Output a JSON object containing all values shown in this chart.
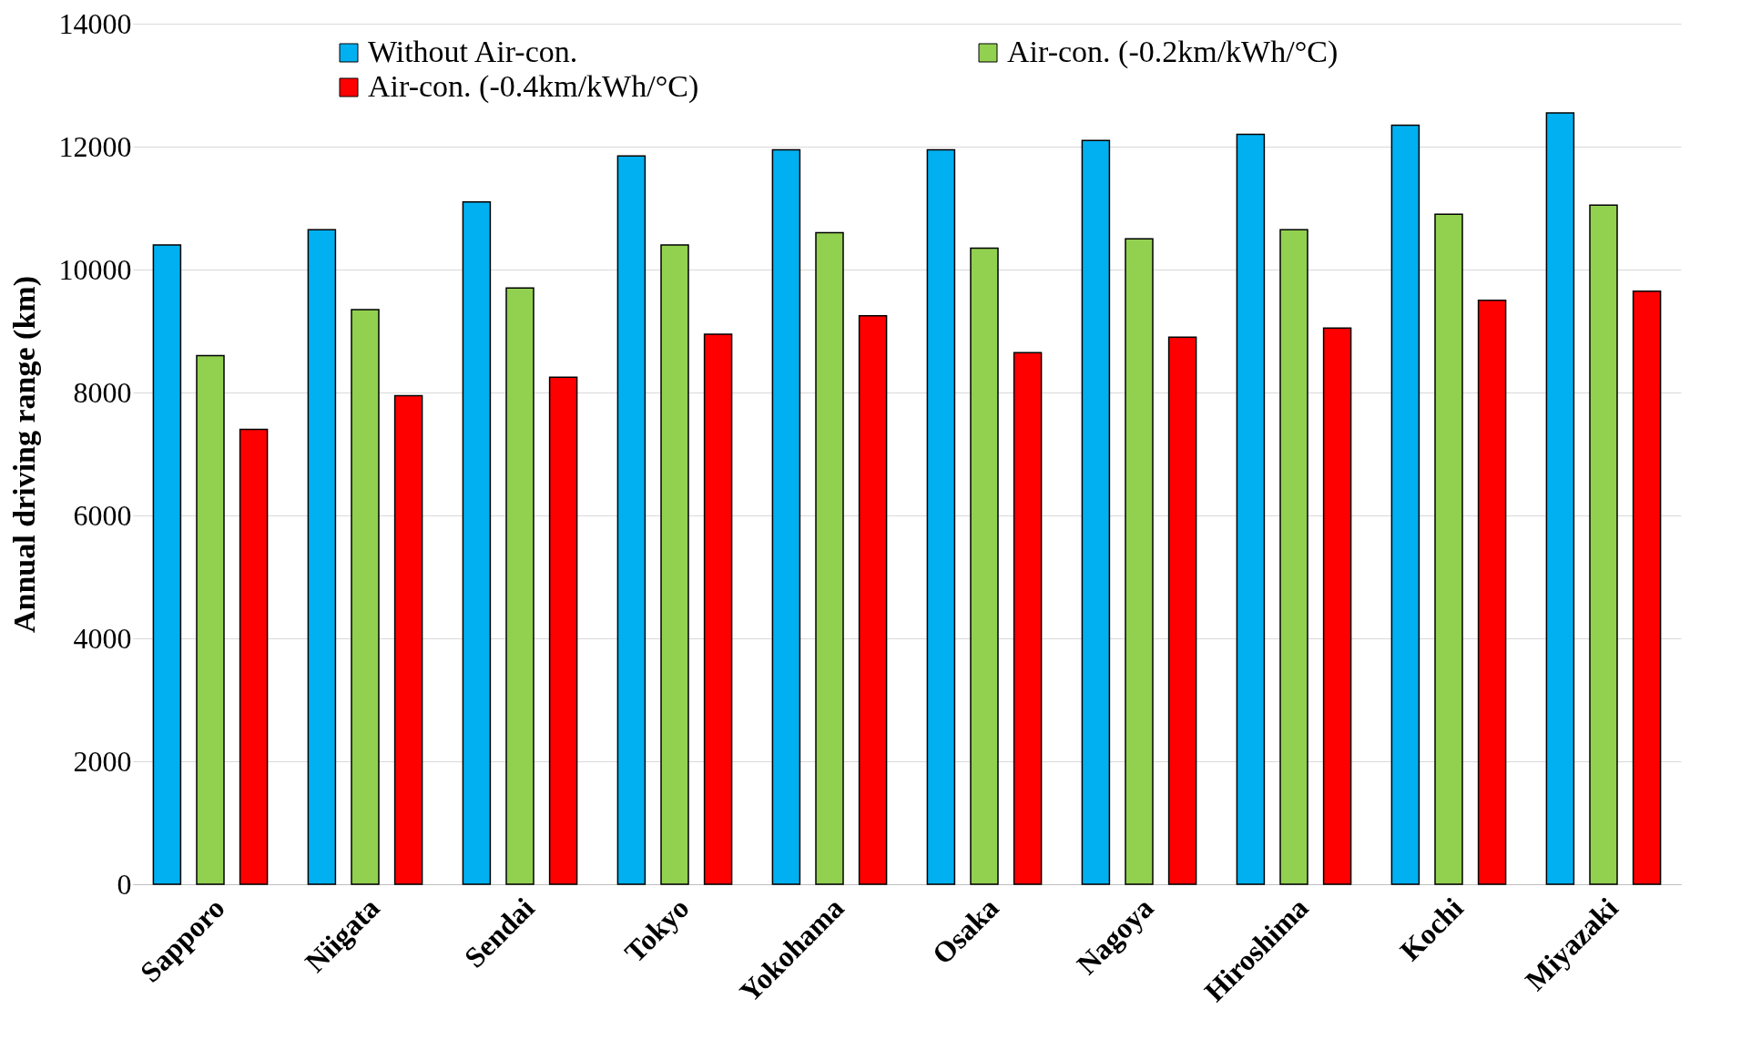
{
  "chart_data": {
    "type": "bar",
    "ylabel": "Annual driving range (km)",
    "categories": [
      "Sapporo",
      "Niigata",
      "Sendai",
      "Tokyo",
      "Yokohama",
      "Osaka",
      "Nagoya",
      "Hiroshima",
      "Kochi",
      "Miyazaki"
    ],
    "series": [
      {
        "name": "Without Air-con.",
        "color": "#00b0f0",
        "values": [
          10400,
          10650,
          11100,
          11850,
          11950,
          11950,
          12100,
          12200,
          12350,
          12550
        ]
      },
      {
        "name": "Air-con. (-0.2km/kWh/°C)",
        "color": "#92d050",
        "values": [
          8600,
          9350,
          9700,
          10400,
          10600,
          10350,
          10500,
          10650,
          10900,
          11050
        ]
      },
      {
        "name": "Air-con. (-0.4km/kWh/°C)",
        "color": "#ff0000",
        "values": [
          7400,
          7950,
          8250,
          8950,
          9250,
          8650,
          8900,
          9050,
          9500,
          9650
        ]
      }
    ],
    "ylim": [
      0,
      14000
    ],
    "yticks": [
      0,
      2000,
      4000,
      6000,
      8000,
      10000,
      12000,
      14000
    ],
    "grid": "y",
    "legend": "top"
  }
}
